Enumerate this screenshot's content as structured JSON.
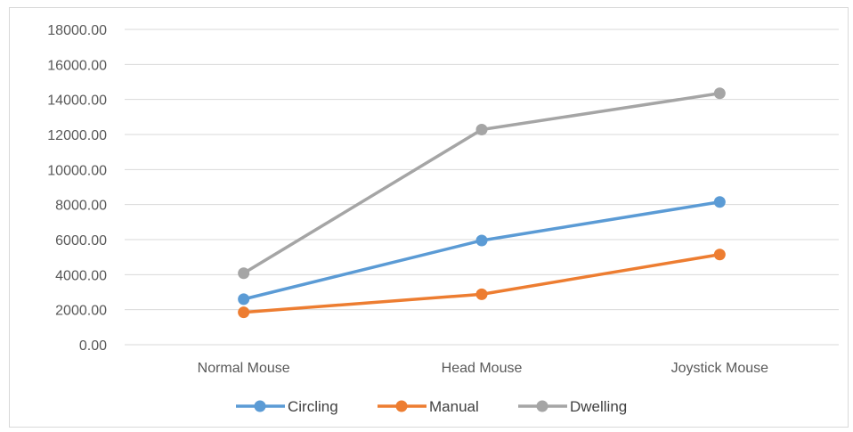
{
  "chart_data": {
    "type": "line",
    "categories": [
      "Normal Mouse",
      "Head Mouse",
      "Joystick Mouse"
    ],
    "series": [
      {
        "name": "Circling",
        "values": [
          2600,
          5950,
          8150
        ],
        "color": "#5B9BD5"
      },
      {
        "name": "Manual",
        "values": [
          1850,
          2880,
          5150
        ],
        "color": "#ED7D31"
      },
      {
        "name": "Dwelling",
        "values": [
          4080,
          12280,
          14350
        ],
        "color": "#A5A5A5"
      }
    ],
    "ylim": [
      0,
      18000
    ],
    "y_ticks": [
      "0.00",
      "2000.00",
      "4000.00",
      "6000.00",
      "8000.00",
      "10000.00",
      "12000.00",
      "14000.00",
      "16000.00",
      "18000.00"
    ],
    "grid": true,
    "legend": "bottom"
  }
}
